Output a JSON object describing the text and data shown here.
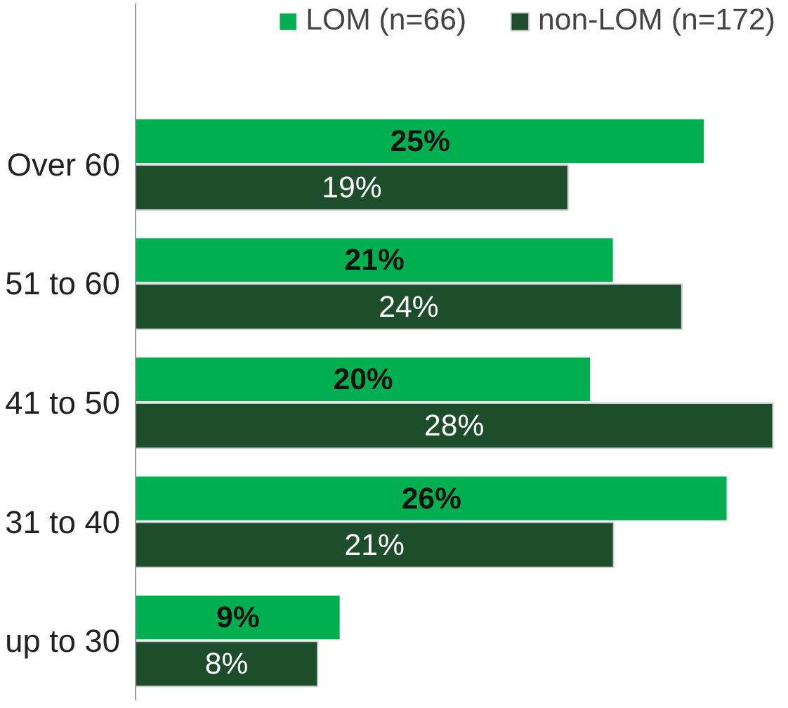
{
  "chart_data": {
    "type": "bar",
    "orientation": "horizontal",
    "categories": [
      "Over 60",
      "51 to 60",
      "41 to 50",
      "31 to 40",
      "up to 30"
    ],
    "series": [
      {
        "name": "LOM (n=66)",
        "color": "#00b050",
        "values": [
          25,
          21,
          20,
          26,
          9
        ],
        "value_labels": [
          "25%",
          "21%",
          "20%",
          "26%",
          "9%"
        ]
      },
      {
        "name": "non-LOM (n=172)",
        "color": "#1e4d2b",
        "values": [
          19,
          24,
          28,
          21,
          8
        ],
        "value_labels": [
          "19%",
          "24%",
          "28%",
          "21%",
          "8%"
        ]
      }
    ],
    "legend": "top"
  }
}
